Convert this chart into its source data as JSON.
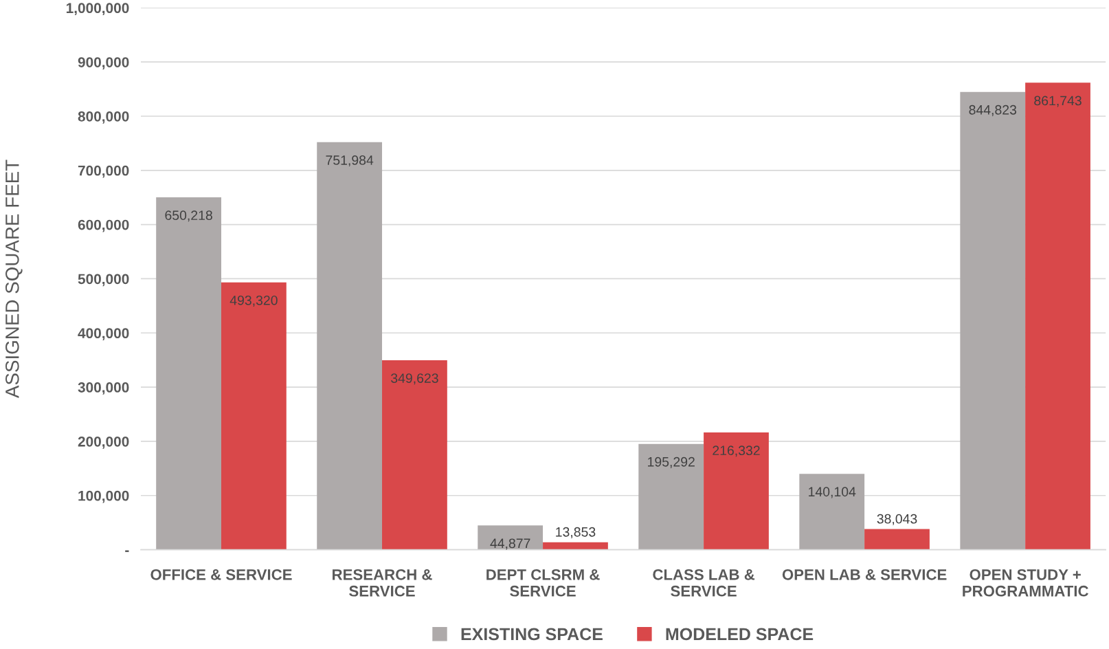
{
  "chart_data": {
    "type": "bar",
    "ylabel": "ASSIGNED SQUARE FEET",
    "categories": [
      "OFFICE & SERVICE",
      "RESEARCH &\nSERVICE",
      "DEPT CLSRM &\nSERVICE",
      "CLASS LAB &\nSERVICE",
      "OPEN LAB & SERVICE",
      "OPEN STUDY +\nPROGRAMMATIC"
    ],
    "series": [
      {
        "name": "EXISTING SPACE",
        "color": "#aeaaaa",
        "values": [
          650218,
          751984,
          44877,
          195292,
          140104,
          844823
        ],
        "value_labels": [
          "650,218",
          "751,984",
          "44,877",
          "195,292",
          "140,104",
          "844,823"
        ]
      },
      {
        "name": "MODELED SPACE",
        "color": "#d9484a",
        "values": [
          493320,
          349623,
          13853,
          216332,
          38043,
          861743
        ],
        "value_labels": [
          "493,320",
          "349,623",
          "13,853",
          "216,332",
          "38,043",
          "861,743"
        ]
      }
    ],
    "ylim": [
      0,
      1000000
    ],
    "yticks": [
      {
        "value": 0,
        "label": "-"
      },
      {
        "value": 100000,
        "label": "100,000"
      },
      {
        "value": 200000,
        "label": "200,000"
      },
      {
        "value": 300000,
        "label": "300,000"
      },
      {
        "value": 400000,
        "label": "400,000"
      },
      {
        "value": 500000,
        "label": "500,000"
      },
      {
        "value": 600000,
        "label": "600,000"
      },
      {
        "value": 700000,
        "label": "700,000"
      },
      {
        "value": 800000,
        "label": "800,000"
      },
      {
        "value": 900000,
        "label": "900,000"
      },
      {
        "value": 1000000,
        "label": "1,000,000"
      }
    ],
    "grid": "y",
    "legend": "bottom"
  }
}
